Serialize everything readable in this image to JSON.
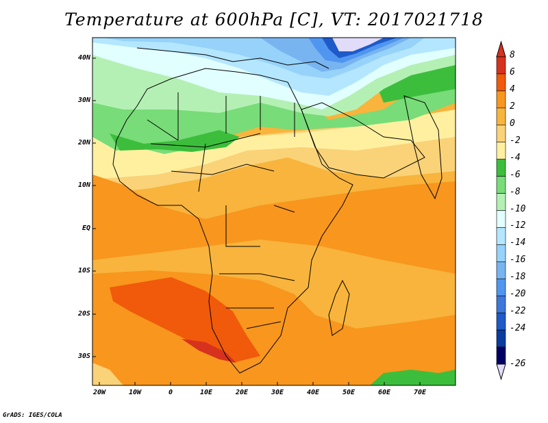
{
  "title": "Temperature at 600hPa [C], VT: 2017021718",
  "credit": "GrADS: IGES/COLA",
  "y_labels": [
    "40N",
    "30N",
    "20N",
    "10N",
    "EQ",
    "10S",
    "20S",
    "30S"
  ],
  "x_labels": [
    "20W",
    "10W",
    "0",
    "10E",
    "20E",
    "30E",
    "40E",
    "50E",
    "60E",
    "70E"
  ],
  "legend": {
    "labels": [
      "8",
      "6",
      "4",
      "2",
      "0",
      "-2",
      "-4",
      "-6",
      "-8",
      "-10",
      "-12",
      "-14",
      "-16",
      "-18",
      "-20",
      "-22",
      "-24",
      "-26"
    ],
    "colors": [
      "#d7321e",
      "#f05a0a",
      "#f8961e",
      "#f8b43c",
      "#fad278",
      "#fff0a0",
      "#3cbe3c",
      "#78dc78",
      "#b4f0b4",
      "#e1ffff",
      "#b4e6ff",
      "#96d2fa",
      "#78b4f0",
      "#5096f0",
      "#3c78dc",
      "#1e5ac8",
      "#0a3ca0",
      "#000064"
    ],
    "top_color": "#d7321e",
    "bottom_color": "#e1dcfa"
  },
  "chart_data": {
    "type": "heatmap",
    "title": "Temperature at 600hPa [C], VT: 2017021718",
    "variable": "Temperature at 600hPa",
    "units": "C",
    "valid_time": "2017021718",
    "lon_range": [
      -22,
      80
    ],
    "lat_range": [
      -36,
      45
    ],
    "contour_levels": [
      -26,
      -24,
      -22,
      -20,
      -18,
      -16,
      -14,
      -12,
      -10,
      -8,
      -6,
      -4,
      -2,
      0,
      2,
      4,
      6,
      8
    ],
    "regions": [
      {
        "area": "north-east corner (Black Sea / Caspian)",
        "value_range": [
          -26,
          -20
        ]
      },
      {
        "area": "Mediterranean and north Sahara",
        "value_range": [
          -14,
          -10
        ]
      },
      {
        "area": "Sahara band ~20N-28N",
        "value_range": [
          -8,
          -4
        ]
      },
      {
        "area": "Sahel ~12N-20N",
        "value_range": [
          -4,
          0
        ]
      },
      {
        "area": "equatorial Africa and Indian Ocean",
        "value_range": [
          0,
          4
        ]
      },
      {
        "area": "southern Africa / South Atlantic ~15S-33S",
        "value_range": [
          4,
          8
        ]
      },
      {
        "area": "south-east corner",
        "value_range": [
          -6,
          -4
        ]
      }
    ]
  }
}
